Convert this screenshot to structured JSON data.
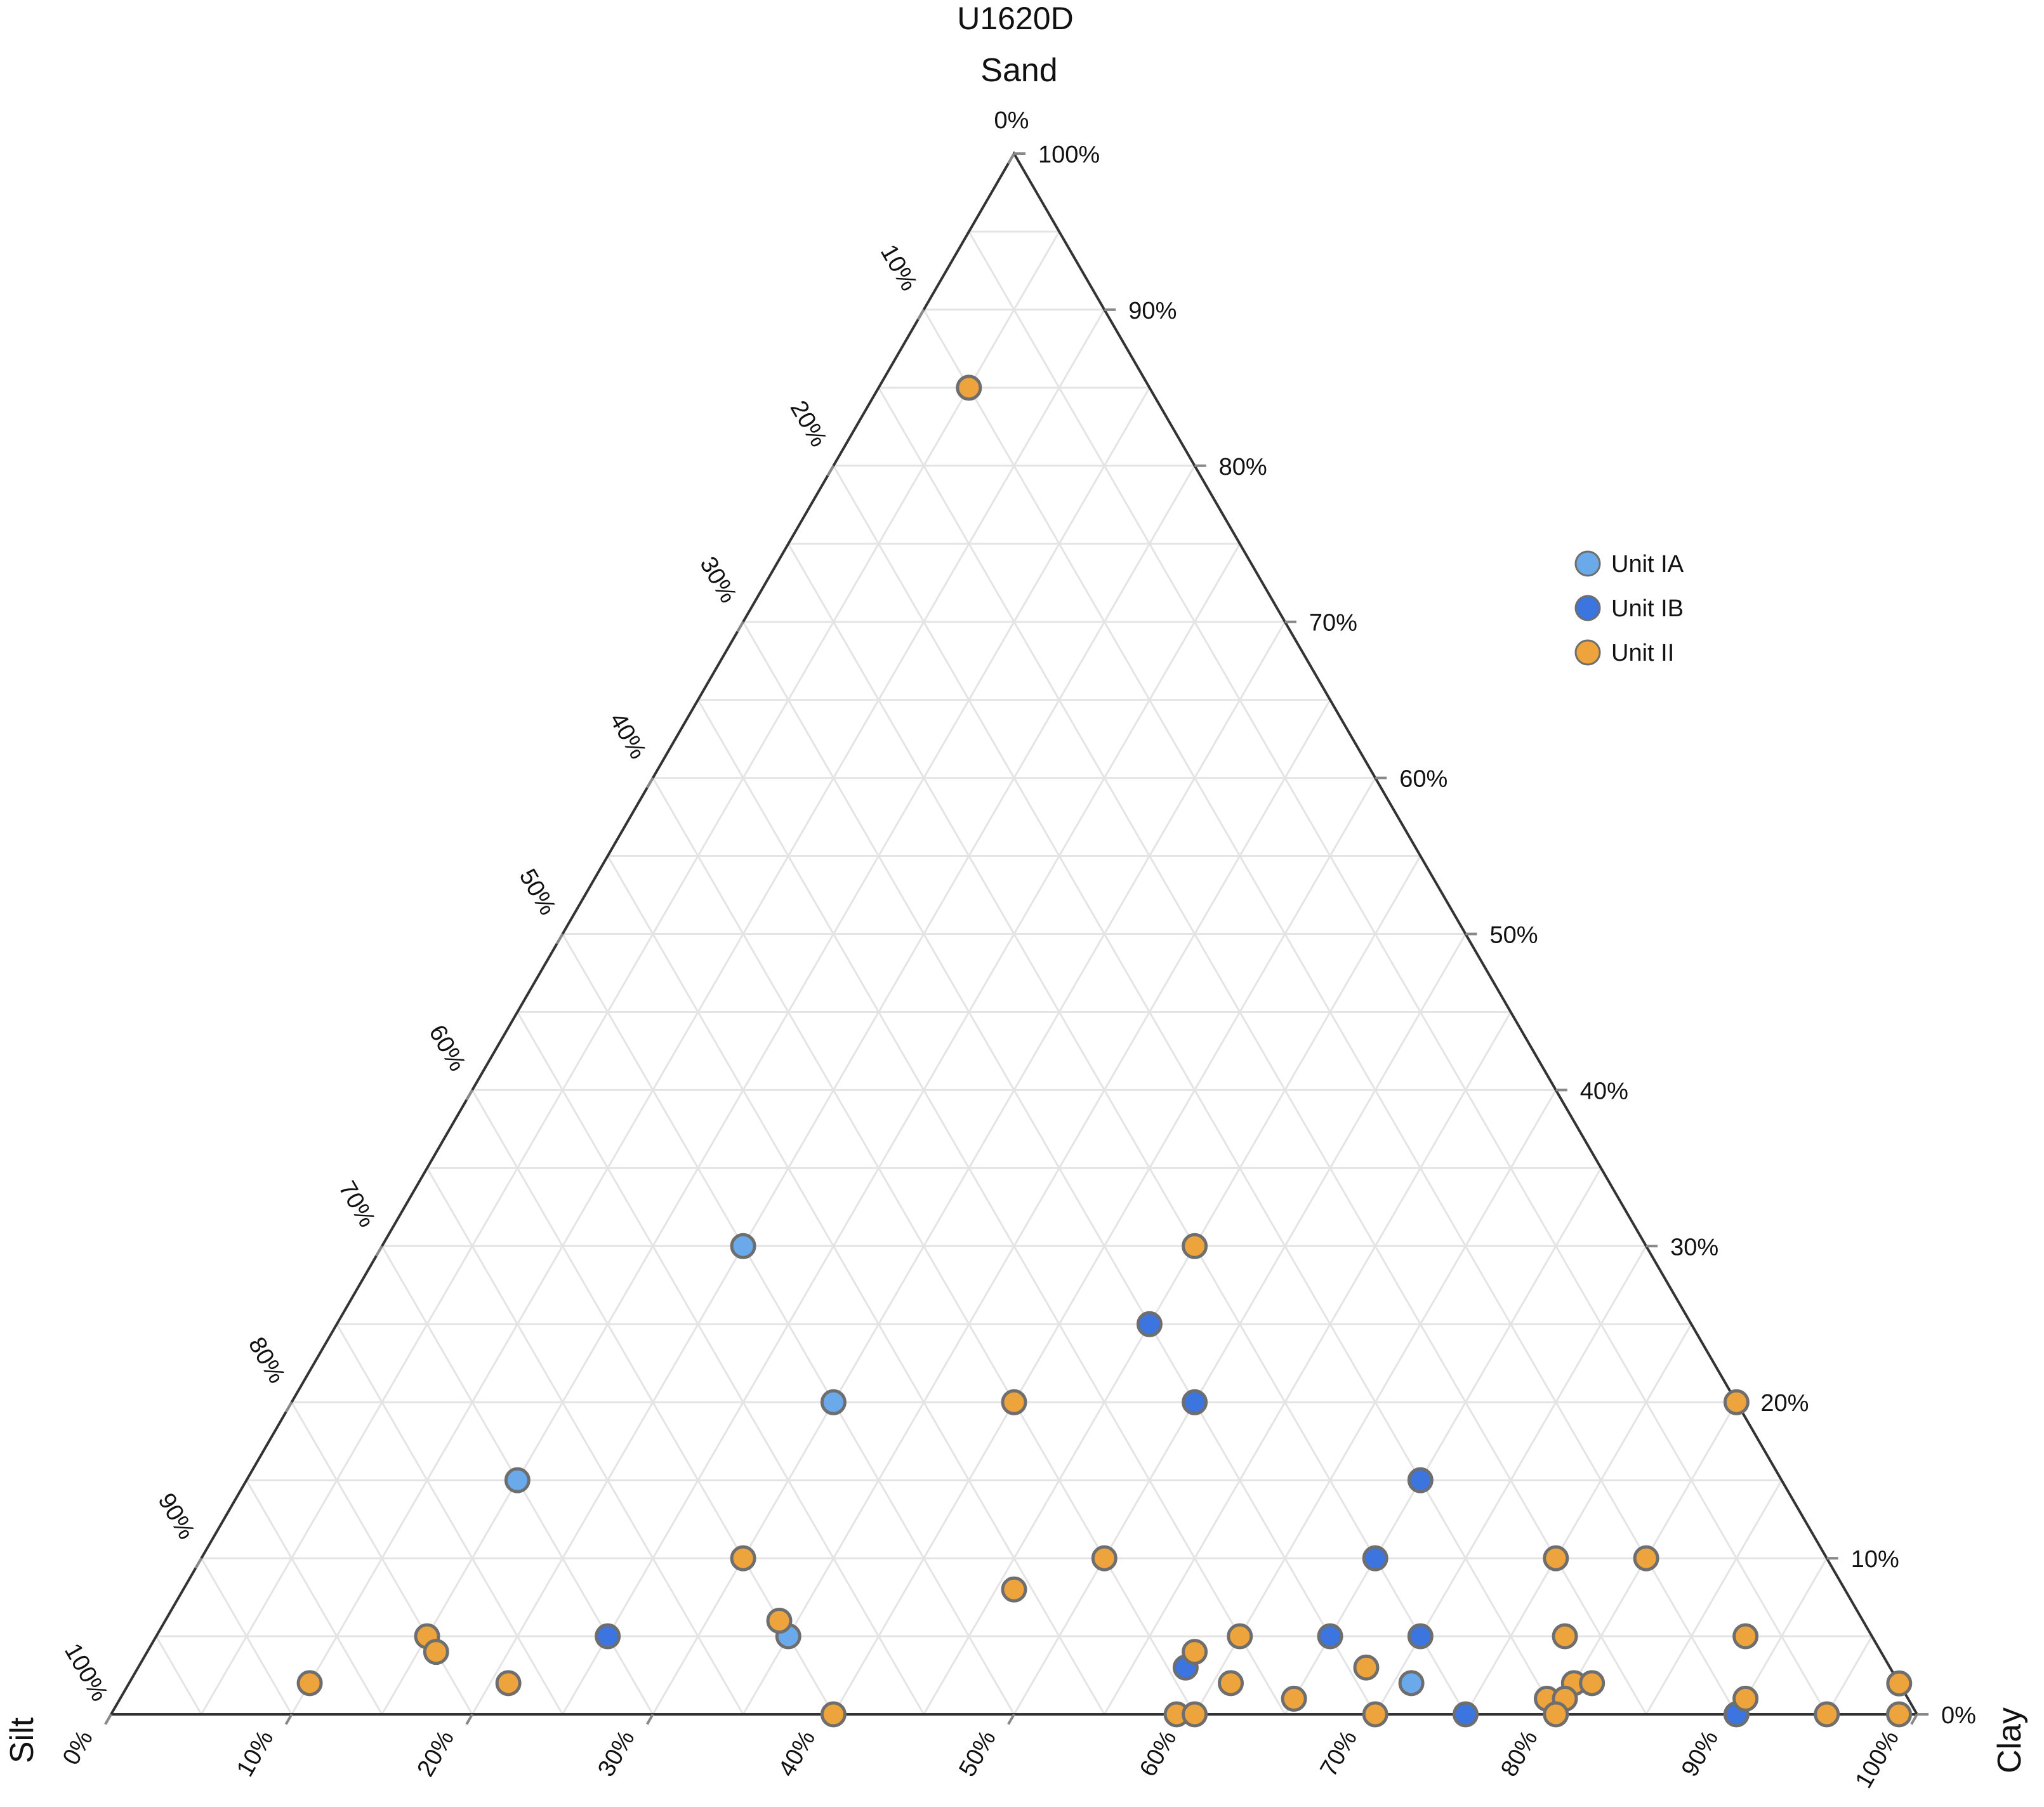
{
  "chart_data": {
    "type": "scatter",
    "subtype": "ternary",
    "title": "U1620D",
    "axes": {
      "top": {
        "name": "Sand",
        "range": [
          0,
          100
        ],
        "unit": "%"
      },
      "left": {
        "name": "Silt",
        "range": [
          0,
          100
        ],
        "unit": "%"
      },
      "right": {
        "name": "Clay",
        "range": [
          0,
          100
        ],
        "unit": "%"
      }
    },
    "left_edge_ticks": [
      "0%",
      "10%",
      "20%",
      "30%",
      "40%",
      "50%",
      "60%",
      "70%",
      "80%",
      "90%",
      "100%"
    ],
    "right_edge_ticks": [
      "100%",
      "90%",
      "80%",
      "70%",
      "60%",
      "50%",
      "40%",
      "30%",
      "20%",
      "10%",
      "0%"
    ],
    "bottom_edge_ticks": [
      "0%",
      "10%",
      "20%",
      "30%",
      "40%",
      "50%",
      "60%",
      "70%",
      "80%",
      "90%",
      "100%"
    ],
    "grid": true,
    "grid_step": 5,
    "legend_position": "right",
    "colors": {
      "Unit IA": "#6aaaea",
      "Unit IB": "#3c74e0",
      "Unit II": "#eda43c",
      "marker_stroke": "#6e6e6e",
      "grid": "#e4e4e4",
      "frame": "#333333"
    },
    "series": [
      {
        "name": "Unit IA",
        "points": [
          {
            "sand": 30,
            "clay": 20,
            "silt": 50
          },
          {
            "sand": 20,
            "clay": 30,
            "silt": 50
          },
          {
            "sand": 15,
            "clay": 15,
            "silt": 70
          },
          {
            "sand": 5,
            "clay": 35,
            "silt": 60
          },
          {
            "sand": 2,
            "clay": 71,
            "silt": 27
          }
        ]
      },
      {
        "name": "Unit IB",
        "points": [
          {
            "sand": 25,
            "clay": 45,
            "silt": 30
          },
          {
            "sand": 20,
            "clay": 50,
            "silt": 30
          },
          {
            "sand": 15,
            "clay": 65,
            "silt": 20
          },
          {
            "sand": 10,
            "clay": 65,
            "silt": 25
          },
          {
            "sand": 5,
            "clay": 25,
            "silt": 70
          },
          {
            "sand": 5,
            "clay": 65,
            "silt": 30
          },
          {
            "sand": 5,
            "clay": 70,
            "silt": 25
          },
          {
            "sand": 3,
            "clay": 58,
            "silt": 39
          },
          {
            "sand": 0,
            "clay": 75,
            "silt": 25
          },
          {
            "sand": 0,
            "clay": 90,
            "silt": 10
          }
        ]
      },
      {
        "name": "Unit II",
        "points": [
          {
            "sand": 85,
            "clay": 5,
            "silt": 10
          },
          {
            "sand": 30,
            "clay": 45,
            "silt": 25
          },
          {
            "sand": 20,
            "clay": 40,
            "silt": 40
          },
          {
            "sand": 20,
            "clay": 80,
            "silt": 0
          },
          {
            "sand": 10,
            "clay": 30,
            "silt": 60
          },
          {
            "sand": 10,
            "clay": 50,
            "silt": 40
          },
          {
            "sand": 10,
            "clay": 75,
            "silt": 15
          },
          {
            "sand": 10,
            "clay": 80,
            "silt": 10
          },
          {
            "sand": 8,
            "clay": 46,
            "silt": 46
          },
          {
            "sand": 6,
            "clay": 34,
            "silt": 60
          },
          {
            "sand": 5,
            "clay": 15,
            "silt": 80
          },
          {
            "sand": 5,
            "clay": 60,
            "silt": 35
          },
          {
            "sand": 5,
            "clay": 78,
            "silt": 17
          },
          {
            "sand": 5,
            "clay": 88,
            "silt": 7
          },
          {
            "sand": 4,
            "clay": 16,
            "silt": 80
          },
          {
            "sand": 4,
            "clay": 58,
            "silt": 38
          },
          {
            "sand": 3,
            "clay": 68,
            "silt": 29
          },
          {
            "sand": 2,
            "clay": 10,
            "silt": 88
          },
          {
            "sand": 2,
            "clay": 21,
            "silt": 77
          },
          {
            "sand": 2,
            "clay": 61,
            "silt": 37
          },
          {
            "sand": 2,
            "clay": 80,
            "silt": 18
          },
          {
            "sand": 2,
            "clay": 81,
            "silt": 17
          },
          {
            "sand": 1,
            "clay": 65,
            "silt": 34
          },
          {
            "sand": 1,
            "clay": 79,
            "silt": 20
          },
          {
            "sand": 1,
            "clay": 80,
            "silt": 19
          },
          {
            "sand": 1,
            "clay": 90,
            "silt": 9
          },
          {
            "sand": 2,
            "clay": 99,
            "silt": 0
          },
          {
            "sand": 0,
            "clay": 40,
            "silt": 60
          },
          {
            "sand": 0,
            "clay": 59,
            "silt": 41
          },
          {
            "sand": 0,
            "clay": 60,
            "silt": 40
          },
          {
            "sand": 0,
            "clay": 70,
            "silt": 30
          },
          {
            "sand": 0,
            "clay": 80,
            "silt": 20
          },
          {
            "sand": 0,
            "clay": 95,
            "silt": 5
          },
          {
            "sand": 0,
            "clay": 99,
            "silt": 1
          }
        ]
      }
    ]
  }
}
